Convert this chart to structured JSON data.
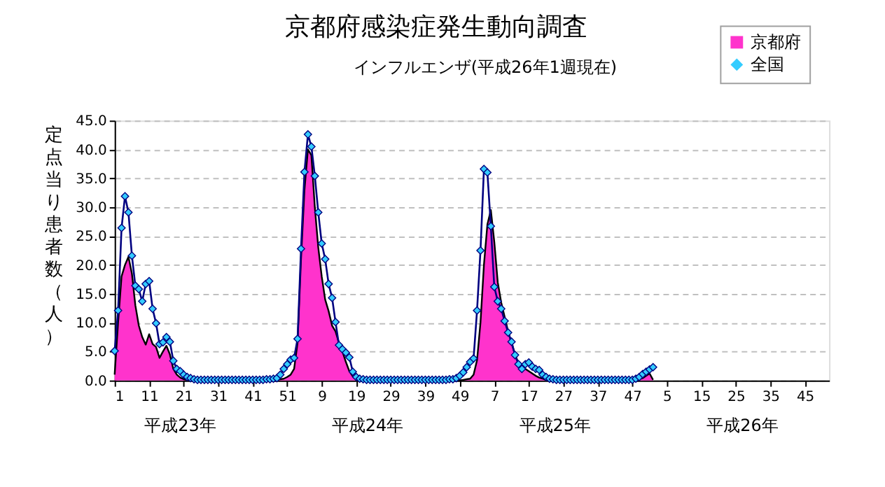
{
  "chart_data": {
    "type": "line",
    "title": "京都府感染症発生動向調査",
    "subtitle": "インフルエンザ(平成26年1週現在)",
    "ylabel": "定点当り患者数（人）",
    "categories": [
      "1",
      null,
      null,
      null,
      null,
      null,
      null,
      null,
      null,
      null,
      "11",
      null,
      null,
      null,
      null,
      null,
      null,
      null,
      null,
      null,
      "21",
      null,
      null,
      null,
      null,
      null,
      null,
      null,
      null,
      null,
      "31",
      null,
      null,
      null,
      null,
      null,
      null,
      null,
      null,
      null,
      "41",
      null,
      null,
      null,
      null,
      null,
      null,
      null,
      null,
      null,
      "51",
      null,
      null,
      null,
      null,
      null,
      null,
      null,
      null,
      null,
      "9",
      null,
      null,
      null,
      null,
      null,
      null,
      null,
      null,
      null,
      "19",
      null,
      null,
      null,
      null,
      null,
      null,
      null,
      null,
      null,
      "29",
      null,
      null,
      null,
      null,
      null,
      null,
      null,
      null,
      null,
      "39",
      null,
      null,
      null,
      null,
      null,
      null,
      null,
      null,
      null,
      "49",
      null,
      null,
      null,
      null,
      null,
      null,
      null,
      null,
      null,
      "7",
      null,
      null,
      null,
      null,
      null,
      null,
      null,
      null,
      null,
      "17",
      null,
      null,
      null,
      null,
      null,
      null,
      null,
      null,
      null,
      "27",
      null,
      null,
      null,
      null,
      null,
      null,
      null,
      null,
      null,
      "37",
      null,
      null,
      null,
      null,
      null,
      null,
      null,
      null,
      null,
      "47",
      null,
      null,
      null,
      null,
      null,
      null,
      null,
      null,
      null,
      "5",
      null,
      null,
      null,
      null,
      null,
      null,
      null,
      null,
      null,
      "15",
      null,
      null,
      null,
      null,
      null,
      null,
      null,
      null,
      null,
      "25",
      null,
      null,
      null,
      null,
      null,
      null,
      null,
      null,
      null,
      "35",
      null,
      null,
      null,
      null,
      null,
      null,
      null,
      null,
      null,
      "45",
      null,
      null,
      null,
      null,
      null,
      null,
      null
    ],
    "series": [
      {
        "name": "京都府",
        "type": "area",
        "color": "#ff33cc",
        "values": [
          1.0,
          10.0,
          18.0,
          20.0,
          21.4,
          18.5,
          13.0,
          9.5,
          7.5,
          6.2,
          8.0,
          6.3,
          5.8,
          3.9,
          5.0,
          6.0,
          4.5,
          2.0,
          1.0,
          0.5,
          0.2,
          0.1,
          0.0,
          0.0,
          0.0,
          0.0,
          0.0,
          0.0,
          0.0,
          0.0,
          0.0,
          0.0,
          0.0,
          0.0,
          0.0,
          0.0,
          0.0,
          0.0,
          0.0,
          0.0,
          0.0,
          0.0,
          0.0,
          0.0,
          0.0,
          0.1,
          0.1,
          0.2,
          0.2,
          0.3,
          0.6,
          1.0,
          2.0,
          6.5,
          21.0,
          33.0,
          40.0,
          39.0,
          30.0,
          23.0,
          18.0,
          14.0,
          12.0,
          9.5,
          8.5,
          6.5,
          5.0,
          3.2,
          1.6,
          0.7,
          0.3,
          0.1,
          0.0,
          0.0,
          0.0,
          0.0,
          0.0,
          0.0,
          0.0,
          0.0,
          0.0,
          0.0,
          0.0,
          0.0,
          0.0,
          0.0,
          0.0,
          0.0,
          0.0,
          0.0,
          0.0,
          0.0,
          0.0,
          0.0,
          0.0,
          0.0,
          0.0,
          0.0,
          0.0,
          0.0,
          0.0,
          0.1,
          0.2,
          0.3,
          1.0,
          3.5,
          10.0,
          20.0,
          27.0,
          29.5,
          24.0,
          17.0,
          13.5,
          11.0,
          8.5,
          6.5,
          4.5,
          3.0,
          2.2,
          2.0,
          1.6,
          1.2,
          0.8,
          0.5,
          0.3,
          0.1,
          0.0,
          0.0,
          0.0,
          0.0,
          0.0,
          0.0,
          0.0,
          0.0,
          0.0,
          0.0,
          0.0,
          0.0,
          0.0,
          0.0,
          0.0,
          0.0,
          0.0,
          0.0,
          0.0,
          0.0,
          0.0,
          0.0,
          0.0,
          0.0,
          0.0,
          0.1,
          0.2,
          0.4,
          0.8,
          1.2,
          0.1,
          null,
          null,
          null,
          null,
          null,
          null,
          null,
          null,
          null,
          null,
          null,
          null,
          null,
          null,
          null,
          null,
          null,
          null,
          null,
          null,
          null,
          null,
          null,
          null,
          null,
          null,
          null,
          null,
          null,
          null,
          null,
          null,
          null,
          null,
          null,
          null,
          null,
          null,
          null,
          null,
          null,
          null,
          null,
          null,
          null,
          null,
          null,
          null,
          null,
          null,
          null
        ]
      },
      {
        "name": "全国",
        "marker": "diamond",
        "color": "#33ccff",
        "values": [
          5.1,
          12.1,
          26.4,
          31.9,
          29.1,
          21.6,
          16.4,
          15.8,
          13.7,
          16.7,
          17.2,
          12.4,
          9.9,
          6.3,
          6.6,
          7.5,
          6.7,
          3.4,
          2.0,
          1.6,
          1.0,
          0.6,
          0.4,
          0.2,
          0.1,
          0.1,
          0.1,
          0.1,
          0.1,
          0.1,
          0.1,
          0.1,
          0.1,
          0.1,
          0.1,
          0.1,
          0.1,
          0.1,
          0.1,
          0.1,
          0.1,
          0.1,
          0.1,
          0.1,
          0.2,
          0.2,
          0.3,
          0.4,
          1.0,
          2.0,
          2.8,
          3.6,
          3.9,
          7.2,
          22.8,
          36.1,
          42.6,
          40.5,
          35.4,
          29.1,
          23.7,
          21.0,
          16.7,
          14.3,
          10.1,
          6.1,
          5.4,
          4.8,
          4.0,
          1.5,
          0.6,
          0.3,
          0.2,
          0.1,
          0.1,
          0.1,
          0.1,
          0.1,
          0.1,
          0.1,
          0.1,
          0.1,
          0.1,
          0.1,
          0.1,
          0.1,
          0.1,
          0.1,
          0.1,
          0.1,
          0.1,
          0.1,
          0.1,
          0.1,
          0.1,
          0.1,
          0.1,
          0.2,
          0.2,
          0.4,
          0.8,
          1.4,
          2.3,
          3.2,
          3.8,
          12.1,
          22.5,
          36.6,
          36.0,
          26.7,
          16.2,
          13.7,
          12.4,
          10.3,
          8.3,
          6.7,
          4.4,
          2.8,
          2.0,
          2.8,
          3.1,
          2.4,
          2.0,
          1.8,
          1.0,
          0.6,
          0.3,
          0.2,
          0.1,
          0.1,
          0.1,
          0.1,
          0.1,
          0.1,
          0.1,
          0.1,
          0.1,
          0.1,
          0.1,
          0.1,
          0.1,
          0.1,
          0.1,
          0.1,
          0.1,
          0.1,
          0.1,
          0.1,
          0.1,
          0.1,
          0.1,
          0.3,
          0.6,
          1.1,
          1.5,
          1.9,
          2.3,
          null,
          null,
          null,
          null,
          null,
          null,
          null,
          null,
          null,
          null,
          null,
          null,
          null,
          null,
          null,
          null,
          null,
          null,
          null,
          null,
          null,
          null,
          null,
          null,
          null,
          null,
          null,
          null,
          null,
          null,
          null,
          null,
          null,
          null,
          null,
          null,
          null,
          null,
          null,
          null,
          null,
          null,
          null,
          null,
          null,
          null,
          null,
          null,
          null,
          null,
          null
        ]
      }
    ],
    "ylim": [
      0,
      45
    ],
    "yticks": [
      {
        "value": 0,
        "label": "0.0"
      },
      {
        "value": 5,
        "label": "5.0"
      },
      {
        "value": 10,
        "label": "10.0"
      },
      {
        "value": 15,
        "label": "15.0"
      },
      {
        "value": 20,
        "label": "20.0"
      },
      {
        "value": 25,
        "label": "25.0"
      },
      {
        "value": 30,
        "label": "30.0"
      },
      {
        "value": 35,
        "label": "35.0"
      },
      {
        "value": 40,
        "label": "40.0"
      },
      {
        "value": 45,
        "label": "45.0"
      }
    ],
    "annotations": [
      "平成23年",
      "平成24年",
      "平成25年",
      "平成26年"
    ],
    "grid": "y",
    "legend": "top right"
  }
}
